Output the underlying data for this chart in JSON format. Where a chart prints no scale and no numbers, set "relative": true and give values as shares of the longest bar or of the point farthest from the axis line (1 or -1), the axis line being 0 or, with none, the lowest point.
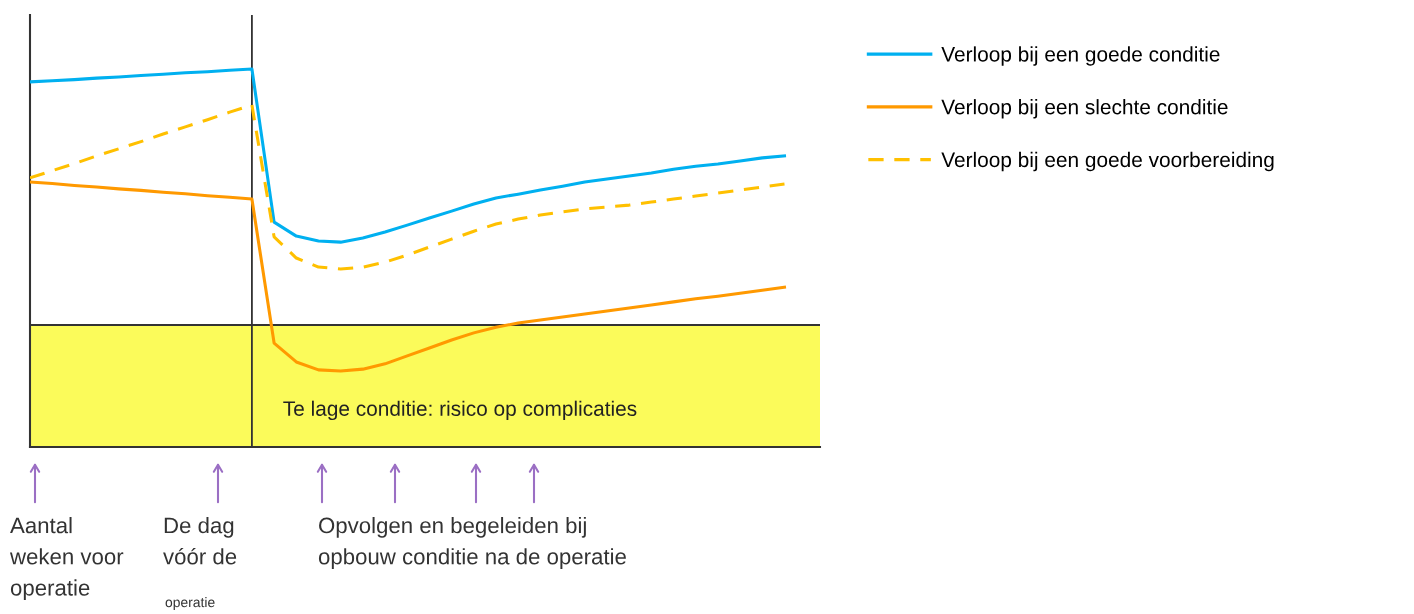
{
  "chart_data": {
    "type": "line",
    "relative": true,
    "legend": "right",
    "categories": [
      null,
      null,
      null,
      null,
      null,
      null,
      null,
      null,
      null,
      null,
      null,
      null,
      null,
      null,
      null,
      null,
      null,
      null,
      null,
      null,
      null,
      null,
      null,
      null,
      null,
      null,
      null,
      null,
      null,
      null,
      null,
      null,
      null,
      null,
      null
    ],
    "series": [
      {
        "name": "Verloop bij een goede conditie",
        "color": "#00b0f0",
        "line_style": "solid",
        "values": [
          0.966,
          0.969,
          0.972,
          0.976,
          0.979,
          0.983,
          0.986,
          0.99,
          0.993,
          0.997,
          1.0,
          0.595,
          0.558,
          0.545,
          0.542,
          0.553,
          0.569,
          0.587,
          0.606,
          0.624,
          0.643,
          0.659,
          0.669,
          0.68,
          0.69,
          0.701,
          0.709,
          0.717,
          0.725,
          0.735,
          0.743,
          0.749,
          0.757,
          0.765,
          0.77
        ]
      },
      {
        "name": "Verloop bij een slechte conditie",
        "color": "#ff9900",
        "line_style": "solid",
        "values": [
          0.701,
          0.697,
          0.692,
          0.688,
          0.683,
          0.679,
          0.674,
          0.67,
          0.665,
          0.661,
          0.656,
          0.275,
          0.225,
          0.204,
          0.201,
          0.206,
          0.22,
          0.241,
          0.262,
          0.283,
          0.302,
          0.317,
          0.328,
          0.336,
          0.344,
          0.352,
          0.36,
          0.368,
          0.376,
          0.384,
          0.392,
          0.399,
          0.407,
          0.415,
          0.423
        ]
      },
      {
        "name": "Verloop bij een goede voorbereiding",
        "color": "#ffc000",
        "line_style": "dashed",
        "values": [
          0.712,
          0.731,
          0.75,
          0.77,
          0.789,
          0.808,
          0.828,
          0.847,
          0.866,
          0.886,
          0.905,
          0.556,
          0.5,
          0.476,
          0.471,
          0.476,
          0.489,
          0.508,
          0.529,
          0.55,
          0.571,
          0.59,
          0.603,
          0.614,
          0.622,
          0.63,
          0.635,
          0.64,
          0.648,
          0.656,
          0.664,
          0.672,
          0.68,
          0.688,
          0.696
        ]
      }
    ],
    "bands": [
      {
        "axis": "y",
        "from": 0,
        "to": 0.323,
        "label": "Te lage conditie: risico op complicaties",
        "color": "#fbfb5a"
      }
    ],
    "annotations": [
      "Aantal\nweken voor\noperatie",
      "De dag\nvóór de",
      "operatie",
      "Opvolgen en begeleiden bij\nopbouw conditie na de operatie"
    ]
  }
}
